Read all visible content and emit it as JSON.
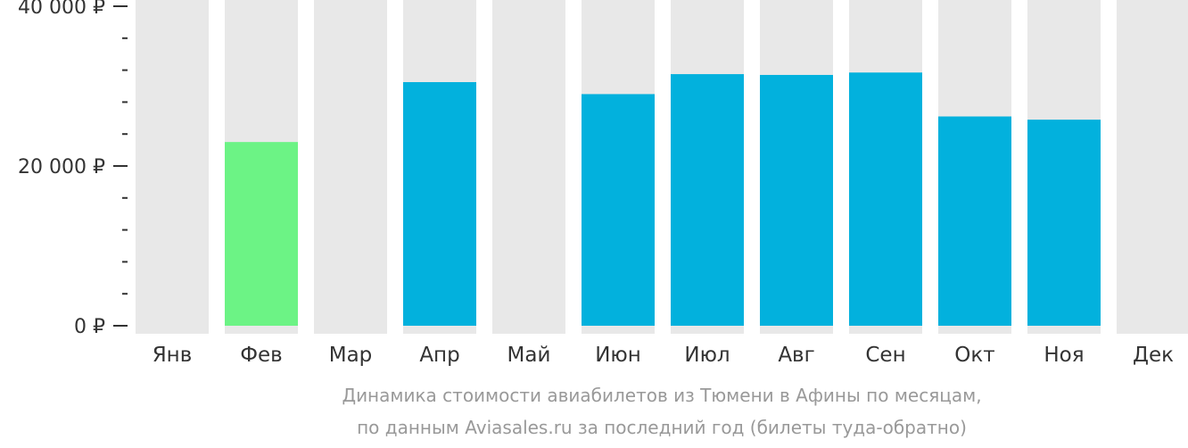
{
  "chart_data": {
    "type": "bar",
    "categories": [
      "Янв",
      "Фев",
      "Мар",
      "Апр",
      "Май",
      "Июн",
      "Июл",
      "Авг",
      "Сен",
      "Окт",
      "Ноя",
      "Дек"
    ],
    "values": [
      null,
      23000,
      null,
      30500,
      null,
      29000,
      31500,
      31400,
      31700,
      26200,
      25800,
      null
    ],
    "ylim": [
      0,
      40000
    ],
    "y_ticks": [
      {
        "value": 0,
        "label": "0 ₽"
      },
      {
        "value": 20000,
        "label": "20 000 ₽"
      },
      {
        "value": 40000,
        "label": "40 000 ₽"
      }
    ],
    "minor_tick_step": 4000,
    "highlight_index": 1,
    "colors": {
      "bar": "#02b1dd",
      "highlight": "#6cf385",
      "background_bar": "#e8e8e8",
      "axis": "#333333"
    },
    "caption_lines": [
      "Динамика стоимости авиабилетов из Тюмени в Афины по месяцам,",
      "по данным Aviasales.ru за последний год (билеты туда-обратно)"
    ]
  }
}
